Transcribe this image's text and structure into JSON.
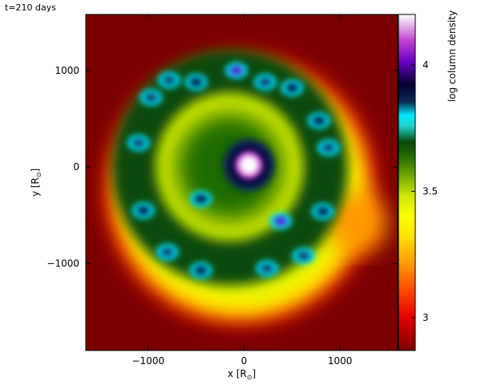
{
  "chart_data": {
    "type": "heatmap",
    "annotation": "t=210 days",
    "xlabel": "x [R",
    "ylabel": "y [R",
    "label_subscript": "⊙",
    "label_close": "]",
    "xlim": [
      -1650,
      1600
    ],
    "ylim": [
      -1900,
      1580
    ],
    "x_ticks": [
      -1000,
      0,
      1000
    ],
    "y_ticks": [
      1000,
      0,
      -1000
    ],
    "x_tick_labels": [
      "−1000",
      "0",
      "1000"
    ],
    "y_tick_labels": [
      "1000",
      "0",
      "−1000"
    ],
    "colorbar": {
      "label": "log column density",
      "range": [
        2.87,
        4.2
      ],
      "ticks": [
        3,
        3.5,
        4
      ],
      "tick_labels": [
        "3",
        "3.5",
        "4"
      ],
      "colormap": [
        {
          "v": 0.0,
          "color": "#7a0000"
        },
        {
          "v": 0.1,
          "color": "#e60000"
        },
        {
          "v": 0.18,
          "color": "#ff4a00"
        },
        {
          "v": 0.26,
          "color": "#ff9a00"
        },
        {
          "v": 0.34,
          "color": "#ffe200"
        },
        {
          "v": 0.4,
          "color": "#ffff00"
        },
        {
          "v": 0.46,
          "color": "#cfe800"
        },
        {
          "v": 0.52,
          "color": "#6fa800"
        },
        {
          "v": 0.58,
          "color": "#1f6a00"
        },
        {
          "v": 0.62,
          "color": "#0a4a0a"
        },
        {
          "v": 0.67,
          "color": "#1fd4d4"
        },
        {
          "v": 0.7,
          "color": "#00e8ff"
        },
        {
          "v": 0.74,
          "color": "#0b2a55"
        },
        {
          "v": 0.79,
          "color": "#050030"
        },
        {
          "v": 0.86,
          "color": "#6a00c0"
        },
        {
          "v": 0.92,
          "color": "#c040d0"
        },
        {
          "v": 1.0,
          "color": "#ffffff"
        }
      ]
    },
    "background_color": "#7a0000",
    "density_structures": {
      "outer_envelope": {
        "center": [
          -40,
          -230
        ],
        "radius": 1400,
        "level": 0.12
      },
      "bulge": {
        "center": [
          1170,
          -580
        ],
        "radius": 320,
        "level": 0.22
      },
      "shell_ring": {
        "center": [
          -150,
          0
        ],
        "radius": 1000,
        "level": 0.6
      },
      "core": {
        "center": [
          50,
          20
        ],
        "radius": 170,
        "level": 1.0
      },
      "clumps": [
        {
          "x": -970,
          "y": 720,
          "level": 0.7
        },
        {
          "x": -780,
          "y": 900,
          "level": 0.7
        },
        {
          "x": -500,
          "y": 880,
          "level": 0.72
        },
        {
          "x": -80,
          "y": 1000,
          "level": 0.78
        },
        {
          "x": 220,
          "y": 880,
          "level": 0.7
        },
        {
          "x": 500,
          "y": 820,
          "level": 0.72
        },
        {
          "x": 780,
          "y": 480,
          "level": 0.74
        },
        {
          "x": 880,
          "y": 200,
          "level": 0.7
        },
        {
          "x": -1100,
          "y": 250,
          "level": 0.7
        },
        {
          "x": -1050,
          "y": -450,
          "level": 0.74
        },
        {
          "x": -800,
          "y": -880,
          "level": 0.68
        },
        {
          "x": -450,
          "y": -1070,
          "level": 0.72
        },
        {
          "x": 240,
          "y": -1050,
          "level": 0.7
        },
        {
          "x": 620,
          "y": -920,
          "level": 0.7
        },
        {
          "x": 820,
          "y": -460,
          "level": 0.72
        },
        {
          "x": 380,
          "y": -560,
          "level": 0.8
        },
        {
          "x": -450,
          "y": -330,
          "level": 0.74
        }
      ]
    }
  }
}
